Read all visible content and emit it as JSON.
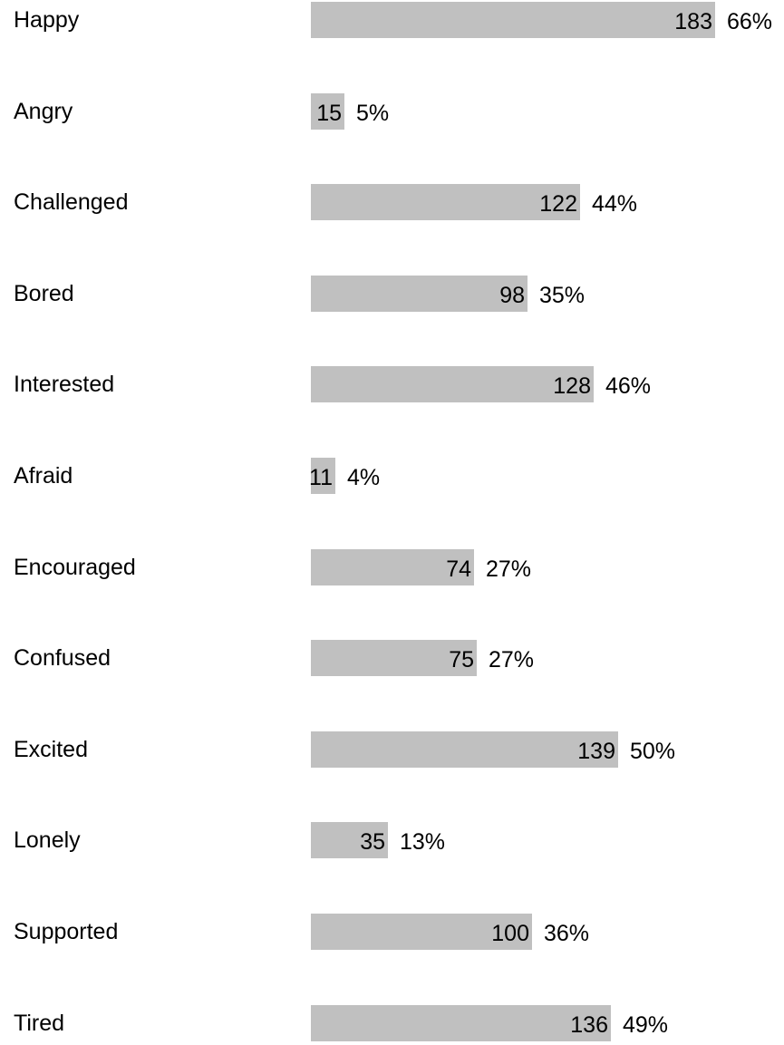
{
  "chart_data": {
    "type": "bar",
    "orientation": "horizontal",
    "bar_color": "#c0c0c0",
    "categories": [
      "Happy",
      "Angry",
      "Challenged",
      "Bored",
      "Interested",
      "Afraid",
      "Encouraged",
      "Confused",
      "Excited",
      "Lonely",
      "Supported",
      "Tired"
    ],
    "values": [
      183,
      15,
      122,
      98,
      128,
      11,
      74,
      75,
      139,
      35,
      100,
      136
    ],
    "percent_labels": [
      "66%",
      "5%",
      "44%",
      "35%",
      "46%",
      "4%",
      "27%",
      "27%",
      "50%",
      "13%",
      "36%",
      "49%"
    ],
    "grid": false
  }
}
